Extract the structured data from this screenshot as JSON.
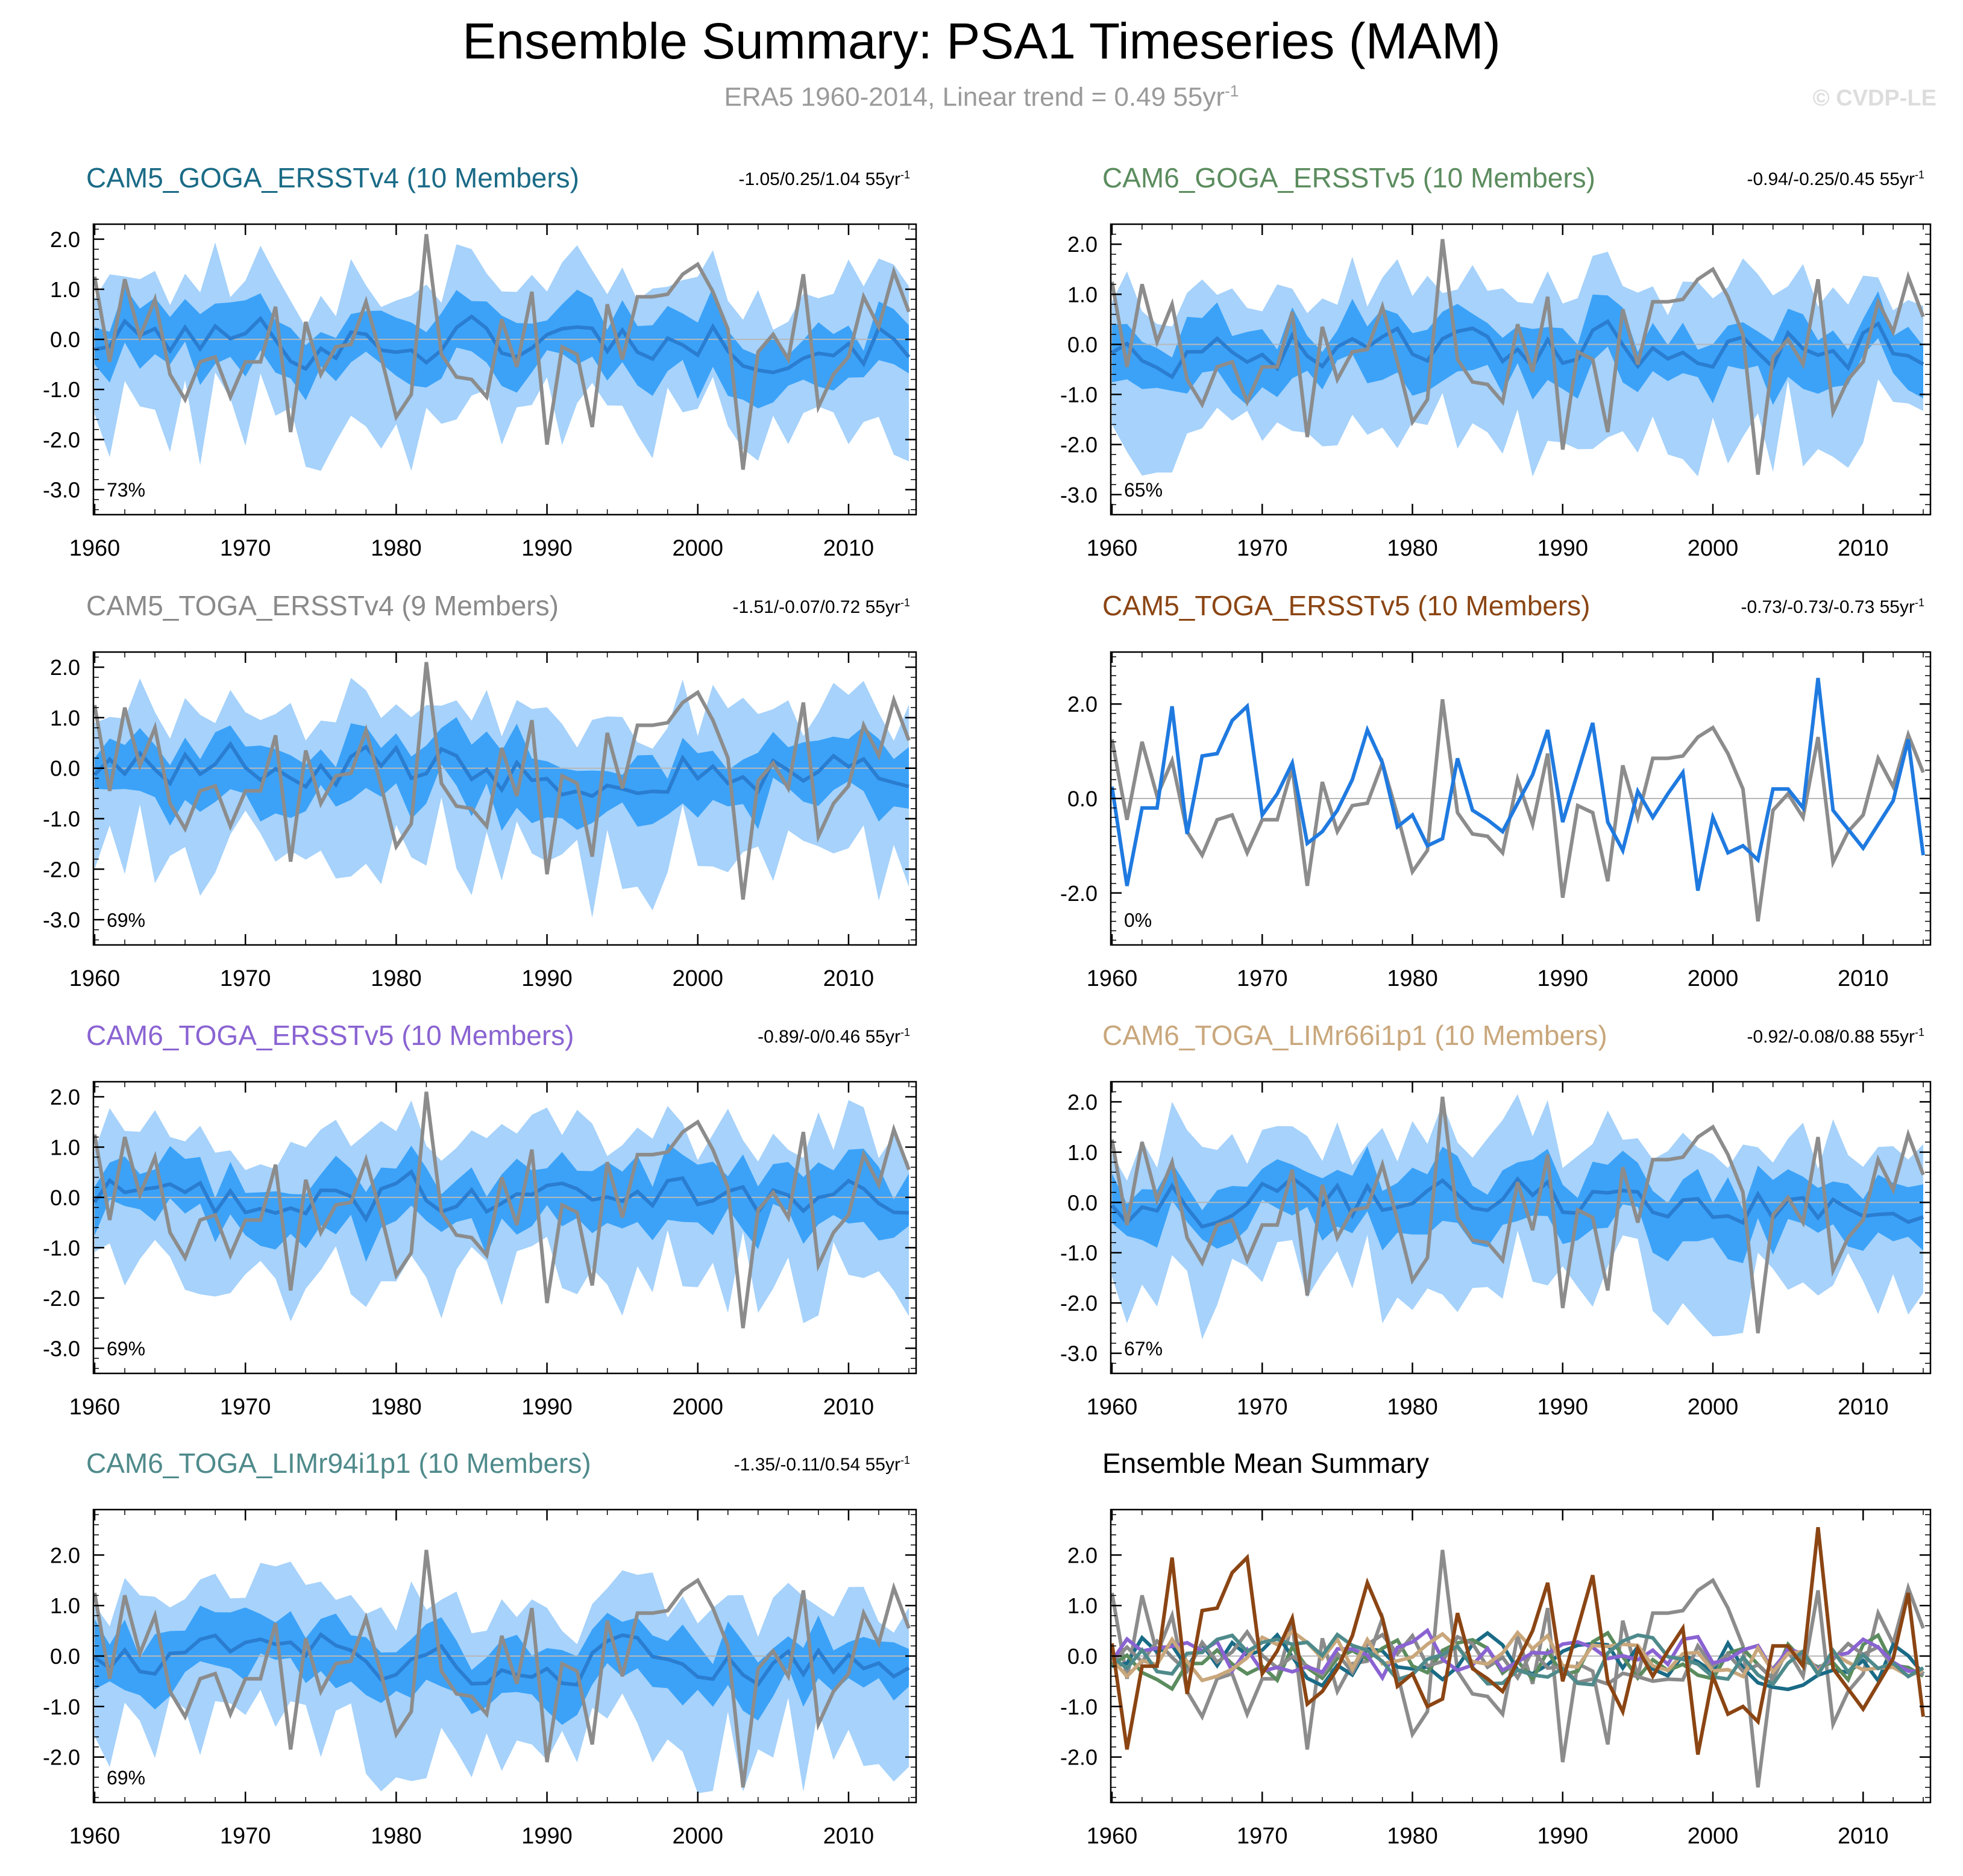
{
  "title": "Ensemble Summary: PSA1 Timeseries (MAM)",
  "subtitle": {
    "text": "ERA5 1960-2014, Linear trend = 0.49 55yr",
    "sup": "-1"
  },
  "watermark": "© CVDP-LE",
  "colors": {
    "outer_band": "#a6d2fb",
    "inner_band": "#3ba2f8",
    "ens_mean": "#2a7dd0",
    "obs": "#8c8c8c",
    "zero_line": "#b8b8b8"
  },
  "chart_data": [
    {
      "type": "area",
      "title": "CAM5_GOGA_ERSSTv4 (10 Members)",
      "title_color": "#1a6b86",
      "trend": "-1.05/0.25/1.04 55yr",
      "trend_sup": "-1",
      "percent": "73%",
      "x": [
        1960,
        2014
      ],
      "xticks": [
        "1960",
        "1970",
        "1980",
        "1990",
        "2000",
        "2010"
      ],
      "ylim": [
        -3.5,
        2.3
      ],
      "yticks": [
        "2.0",
        "1.0",
        "0.0",
        "-1.0",
        "-2.0",
        "-3.0"
      ],
      "band_seed": 11,
      "obs_line": "ERA5",
      "ens_seed": 101
    },
    {
      "type": "area",
      "title": "CAM6_GOGA_ERSSTv5 (10 Members)",
      "title_color": "#5b8c5e",
      "trend": "-0.94/-0.25/0.45 55yr",
      "trend_sup": "-1",
      "percent": "65%",
      "x": [
        1960,
        2014
      ],
      "xticks": [
        "1960",
        "1970",
        "1980",
        "1990",
        "2000",
        "2010"
      ],
      "ylim": [
        -3.4,
        2.4
      ],
      "yticks": [
        "2.0",
        "1.0",
        "0.0",
        "-1.0",
        "-2.0",
        "-3.0"
      ],
      "band_seed": 23,
      "obs_line": "ERA5",
      "ens_seed": 202
    },
    {
      "type": "area",
      "title": "CAM5_TOGA_ERSSTv4 (9 Members)",
      "title_color": "#8a8a8a",
      "trend": "-1.51/-0.07/0.72 55yr",
      "trend_sup": "-1",
      "percent": "69%",
      "x": [
        1960,
        2014
      ],
      "xticks": [
        "1960",
        "1970",
        "1980",
        "1990",
        "2000",
        "2010"
      ],
      "ylim": [
        -3.5,
        2.3
      ],
      "yticks": [
        "2.0",
        "1.0",
        "0.0",
        "-1.0",
        "-2.0",
        "-3.0"
      ],
      "band_seed": 37,
      "obs_line": "ERA5",
      "ens_seed": 303
    },
    {
      "type": "line",
      "title": "CAM5_TOGA_ERSSTv5 (10 Members)",
      "title_color": "#8b4513",
      "trend": "-0.73/-0.73/-0.73 55yr",
      "trend_sup": "-1",
      "percent": "0%",
      "x": [
        1960,
        2014
      ],
      "xticks": [
        "1960",
        "1970",
        "1980",
        "1990",
        "2000",
        "2010"
      ],
      "ylim": [
        -3.1,
        3.1
      ],
      "yticks": [
        "2.0",
        "0.0",
        "-2.0"
      ],
      "single_member": [
        0.25,
        -1.85,
        -0.2,
        -0.2,
        1.95,
        -0.75,
        0.9,
        0.95,
        1.65,
        1.95,
        -0.35,
        0.1,
        0.75,
        -0.95,
        -0.7,
        -0.25,
        0.4,
        1.45,
        0.75,
        -0.6,
        -0.35,
        -1.0,
        -0.85,
        0.85,
        -0.25,
        -0.45,
        -0.7,
        -0.1,
        0.5,
        1.45,
        -0.5,
        0.55,
        1.6,
        -0.5,
        -1.1,
        0.15,
        -0.4,
        0.1,
        0.55,
        -1.95,
        -0.4,
        -1.15,
        -1.0,
        -1.3,
        0.2,
        0.2,
        -0.2,
        2.55,
        -0.25,
        -0.65,
        -1.05,
        -0.55,
        -0.05,
        1.25,
        -1.2
      ]
    },
    {
      "type": "area",
      "title": "CAM6_TOGA_ERSSTv5 (10 Members)",
      "title_color": "#8a63d2",
      "trend": "-0.89/-0/0.46 55yr",
      "trend_sup": "-1",
      "percent": "69%",
      "x": [
        1960,
        2014
      ],
      "xticks": [
        "1960",
        "1970",
        "1980",
        "1990",
        "2000",
        "2010"
      ],
      "ylim": [
        -3.5,
        2.3
      ],
      "yticks": [
        "2.0",
        "1.0",
        "0.0",
        "-1.0",
        "-2.0",
        "-3.0"
      ],
      "band_seed": 53,
      "obs_line": "ERA5",
      "ens_seed": 404
    },
    {
      "type": "area",
      "title": "CAM6_TOGA_LIMr66i1p1 (10 Members)",
      "title_color": "#c9a77c",
      "trend": "-0.92/-0.08/0.88 55yr",
      "trend_sup": "-1",
      "percent": "67%",
      "x": [
        1960,
        2014
      ],
      "xticks": [
        "1960",
        "1970",
        "1980",
        "1990",
        "2000",
        "2010"
      ],
      "ylim": [
        -3.4,
        2.4
      ],
      "yticks": [
        "2.0",
        "1.0",
        "0.0",
        "-1.0",
        "-2.0",
        "-3.0"
      ],
      "band_seed": 67,
      "obs_line": "ERA5",
      "ens_seed": 505
    },
    {
      "type": "area",
      "title": "CAM6_TOGA_LIMr94i1p1 (10 Members)",
      "title_color": "#4f8a8b",
      "trend": "-1.35/-0.11/0.54 55yr",
      "trend_sup": "-1",
      "percent": "69%",
      "x": [
        1960,
        2014
      ],
      "xticks": [
        "1960",
        "1970",
        "1980",
        "1990",
        "2000",
        "2010"
      ],
      "ylim": [
        -2.9,
        2.9
      ],
      "yticks": [
        "2.0",
        "1.0",
        "0.0",
        "-1.0",
        "-2.0"
      ],
      "band_seed": 79,
      "obs_line": "ERA5",
      "ens_seed": 606
    },
    {
      "type": "line",
      "title": "Ensemble Mean Summary",
      "title_color": "#000000",
      "trend": "",
      "trend_sup": "",
      "percent": "",
      "x": [
        1960,
        2014
      ],
      "xticks": [
        "1960",
        "1970",
        "1980",
        "1990",
        "2000",
        "2010"
      ],
      "ylim": [
        -2.9,
        2.9
      ],
      "yticks": [
        "2.0",
        "1.0",
        "0.0",
        "-1.0",
        "-2.0"
      ],
      "summary_series": [
        {
          "name": "CAM5_GOGA_ERSSTv4",
          "color": "#1a6b86",
          "seed": 101
        },
        {
          "name": "CAM6_GOGA_ERSSTv5",
          "color": "#5b8c5e",
          "seed": 202
        },
        {
          "name": "CAM5_TOGA_ERSSTv4",
          "color": "#8a8a8a",
          "seed": 303
        },
        {
          "name": "CAM6_TOGA_ERSSTv5",
          "color": "#8a63d2",
          "seed": 404
        },
        {
          "name": "CAM6_TOGA_LIMr66i1p1",
          "color": "#c9a77c",
          "seed": 505
        },
        {
          "name": "CAM6_TOGA_LIMr94i1p1",
          "color": "#4f8a8b",
          "seed": 606
        },
        {
          "name": "CAM5_TOGA_ERSSTv5",
          "color": "#8b4513",
          "seed": 0
        }
      ]
    }
  ],
  "era5_obs": [
    1.25,
    -0.45,
    1.2,
    0.05,
    0.8,
    -0.7,
    -1.2,
    -0.45,
    -0.35,
    -1.15,
    -0.45,
    -0.45,
    0.65,
    -1.85,
    0.35,
    -0.7,
    -0.15,
    -0.1,
    0.75,
    -0.35,
    -1.55,
    -1.1,
    2.1,
    -0.3,
    -0.75,
    -0.8,
    -1.15,
    0.4,
    -0.55,
    0.95,
    -2.1,
    -0.15,
    -0.3,
    -1.75,
    0.7,
    -0.4,
    0.85,
    0.85,
    0.9,
    1.3,
    1.5,
    0.95,
    0.2,
    -2.6,
    -0.25,
    0.1,
    -0.4,
    1.3,
    -1.35,
    -0.7,
    -0.35,
    0.85,
    0.25,
    1.35,
    0.55
  ]
}
